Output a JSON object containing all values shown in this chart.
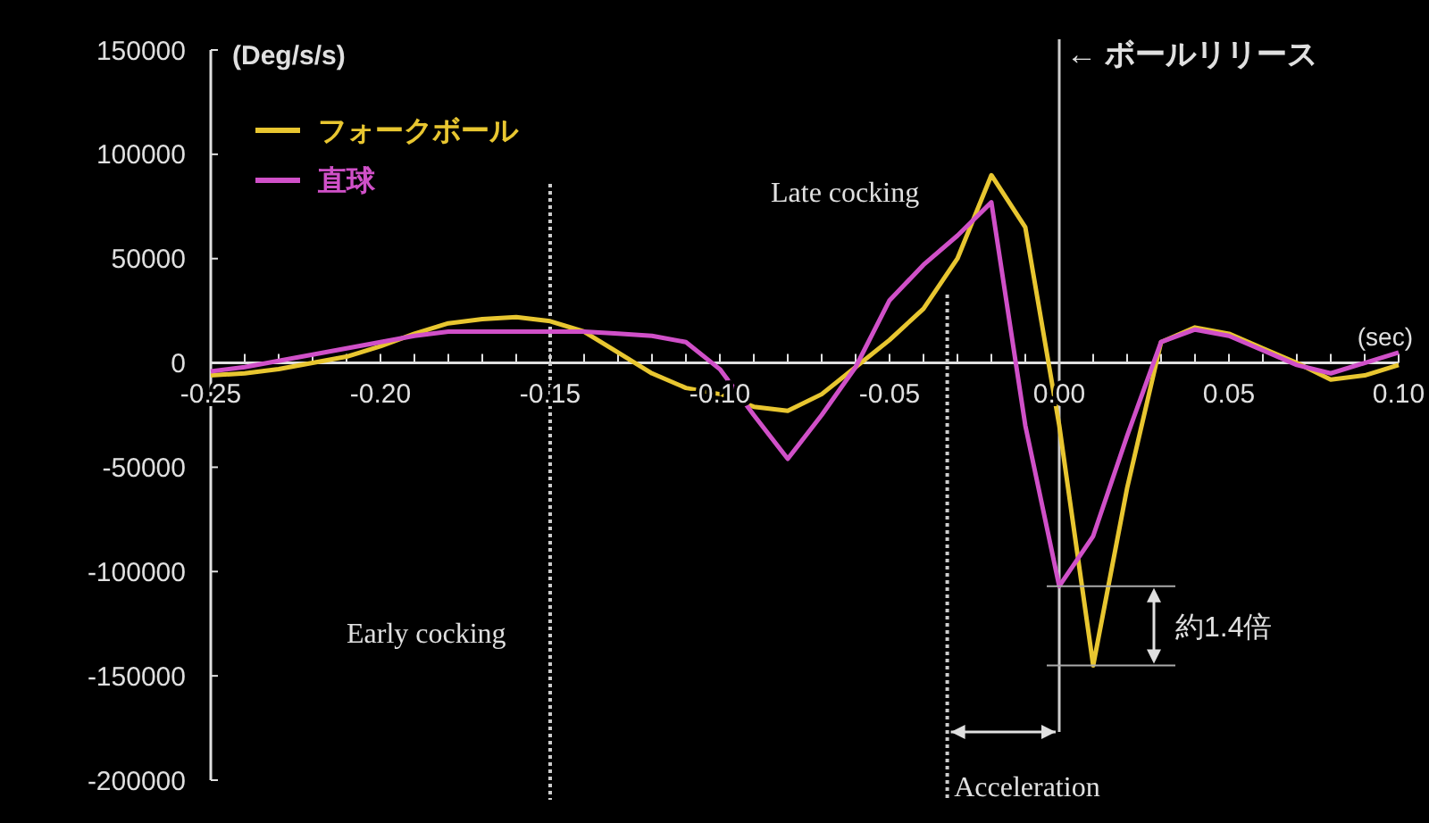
{
  "chart_data": {
    "type": "line",
    "xlabel": "(sec)",
    "ylabel": "(Deg/s/s)",
    "xlim": [
      -0.25,
      0.1
    ],
    "ylim": [
      -200000,
      150000
    ],
    "xticks": [
      -0.25,
      {
        "value": -0.24,
        "label": null
      },
      {
        "value": -0.23,
        "label": null
      },
      {
        "value": -0.22,
        "label": null
      },
      {
        "value": -0.21,
        "label": null
      },
      {
        "value": -0.2,
        "label": "-0.20"
      },
      {
        "value": -0.19,
        "label": null
      },
      {
        "value": -0.18,
        "label": null
      },
      {
        "value": -0.17,
        "label": null
      },
      {
        "value": -0.16,
        "label": null
      },
      -0.15,
      {
        "value": -0.14,
        "label": null
      },
      {
        "value": -0.13,
        "label": null
      },
      {
        "value": -0.12,
        "label": null
      },
      {
        "value": -0.11,
        "label": null
      },
      {
        "value": -0.1,
        "label": "-0.10"
      },
      {
        "value": -0.09,
        "label": null
      },
      {
        "value": -0.08,
        "label": null
      },
      {
        "value": -0.07,
        "label": null
      },
      {
        "value": -0.06,
        "label": null
      },
      -0.05,
      {
        "value": -0.04,
        "label": null
      },
      {
        "value": -0.03,
        "label": null
      },
      {
        "value": -0.02,
        "label": null
      },
      {
        "value": -0.01,
        "label": null
      },
      {
        "value": 0,
        "label": "0.00"
      },
      {
        "value": 0.01,
        "label": null
      },
      {
        "value": 0.02,
        "label": null
      },
      {
        "value": 0.03,
        "label": null
      },
      {
        "value": 0.04,
        "label": null
      },
      0.05,
      {
        "value": 0.06,
        "label": null
      },
      {
        "value": 0.07,
        "label": null
      },
      {
        "value": 0.08,
        "label": null
      },
      {
        "value": 0.09,
        "label": null
      },
      {
        "value": 0.1,
        "label": "0.10"
      }
    ],
    "yticks": [
      -200000,
      -150000,
      -100000,
      -50000,
      0,
      50000,
      100000,
      150000
    ],
    "grid": false,
    "legend": "top left",
    "marker": "none",
    "line_style": "solid",
    "series": [
      {
        "name": "フォークボール",
        "color": "#e8c630",
        "x": [
          -0.25,
          -0.24,
          -0.23,
          -0.22,
          -0.21,
          -0.2,
          -0.19,
          -0.18,
          -0.17,
          -0.16,
          -0.15,
          -0.14,
          -0.13,
          -0.12,
          -0.11,
          -0.1,
          -0.09,
          -0.08,
          -0.07,
          -0.06,
          -0.05,
          -0.04,
          -0.03,
          -0.02,
          -0.01,
          0,
          0.01,
          0.02,
          0.03,
          0.04,
          0.05,
          0.06,
          0.07,
          0.08,
          0.09,
          0.1
        ],
        "values": [
          -6000,
          -5000,
          -3000,
          0,
          3000,
          8000,
          14000,
          19000,
          21000,
          22000,
          20000,
          15000,
          5000,
          -5000,
          -12000,
          -15000,
          -21000,
          -23000,
          -15000,
          -2000,
          11000,
          26000,
          50000,
          90000,
          65000,
          -30000,
          -145000,
          -60000,
          10000,
          17000,
          14000,
          7000,
          0,
          -8000,
          -6000,
          -1000
        ]
      },
      {
        "name": "直球",
        "color": "#d050c8",
        "x": [
          -0.25,
          -0.24,
          -0.23,
          -0.22,
          -0.21,
          -0.2,
          -0.19,
          -0.18,
          -0.17,
          -0.16,
          -0.15,
          -0.14,
          -0.13,
          -0.12,
          -0.11,
          -0.1,
          -0.09,
          -0.08,
          -0.07,
          -0.06,
          -0.05,
          -0.04,
          -0.03,
          -0.02,
          -0.01,
          0,
          0.01,
          0.02,
          0.03,
          0.04,
          0.05,
          0.06,
          0.07,
          0.08,
          0.09,
          0.1
        ],
        "values": [
          -4000,
          -2000,
          1000,
          4000,
          7000,
          10000,
          13000,
          15000,
          15000,
          15000,
          15000,
          15000,
          14000,
          13000,
          10000,
          -3000,
          -25000,
          -46000,
          -25000,
          -2000,
          30000,
          47000,
          61000,
          77000,
          -30000,
          -107000,
          -83000,
          -35000,
          10000,
          16000,
          13000,
          6000,
          -1000,
          -5000,
          0,
          5000
        ]
      }
    ],
    "ref_lines": [
      {
        "axis": "x",
        "value": -0.15,
        "line_style": "dotted",
        "color": "#cccccc"
      },
      {
        "axis": "x",
        "value": -0.033,
        "line_style": "dotted",
        "color": "#cccccc"
      },
      {
        "axis": "x",
        "value": 0,
        "line_style": "solid",
        "color": "#cccccc",
        "label": "← ボールリリース"
      }
    ],
    "annotations": [
      "Early cocking",
      "Late cocking",
      "Acceleration",
      {
        "text": "約1.4倍",
        "x": 0.01,
        "y": -145000
      }
    ]
  }
}
